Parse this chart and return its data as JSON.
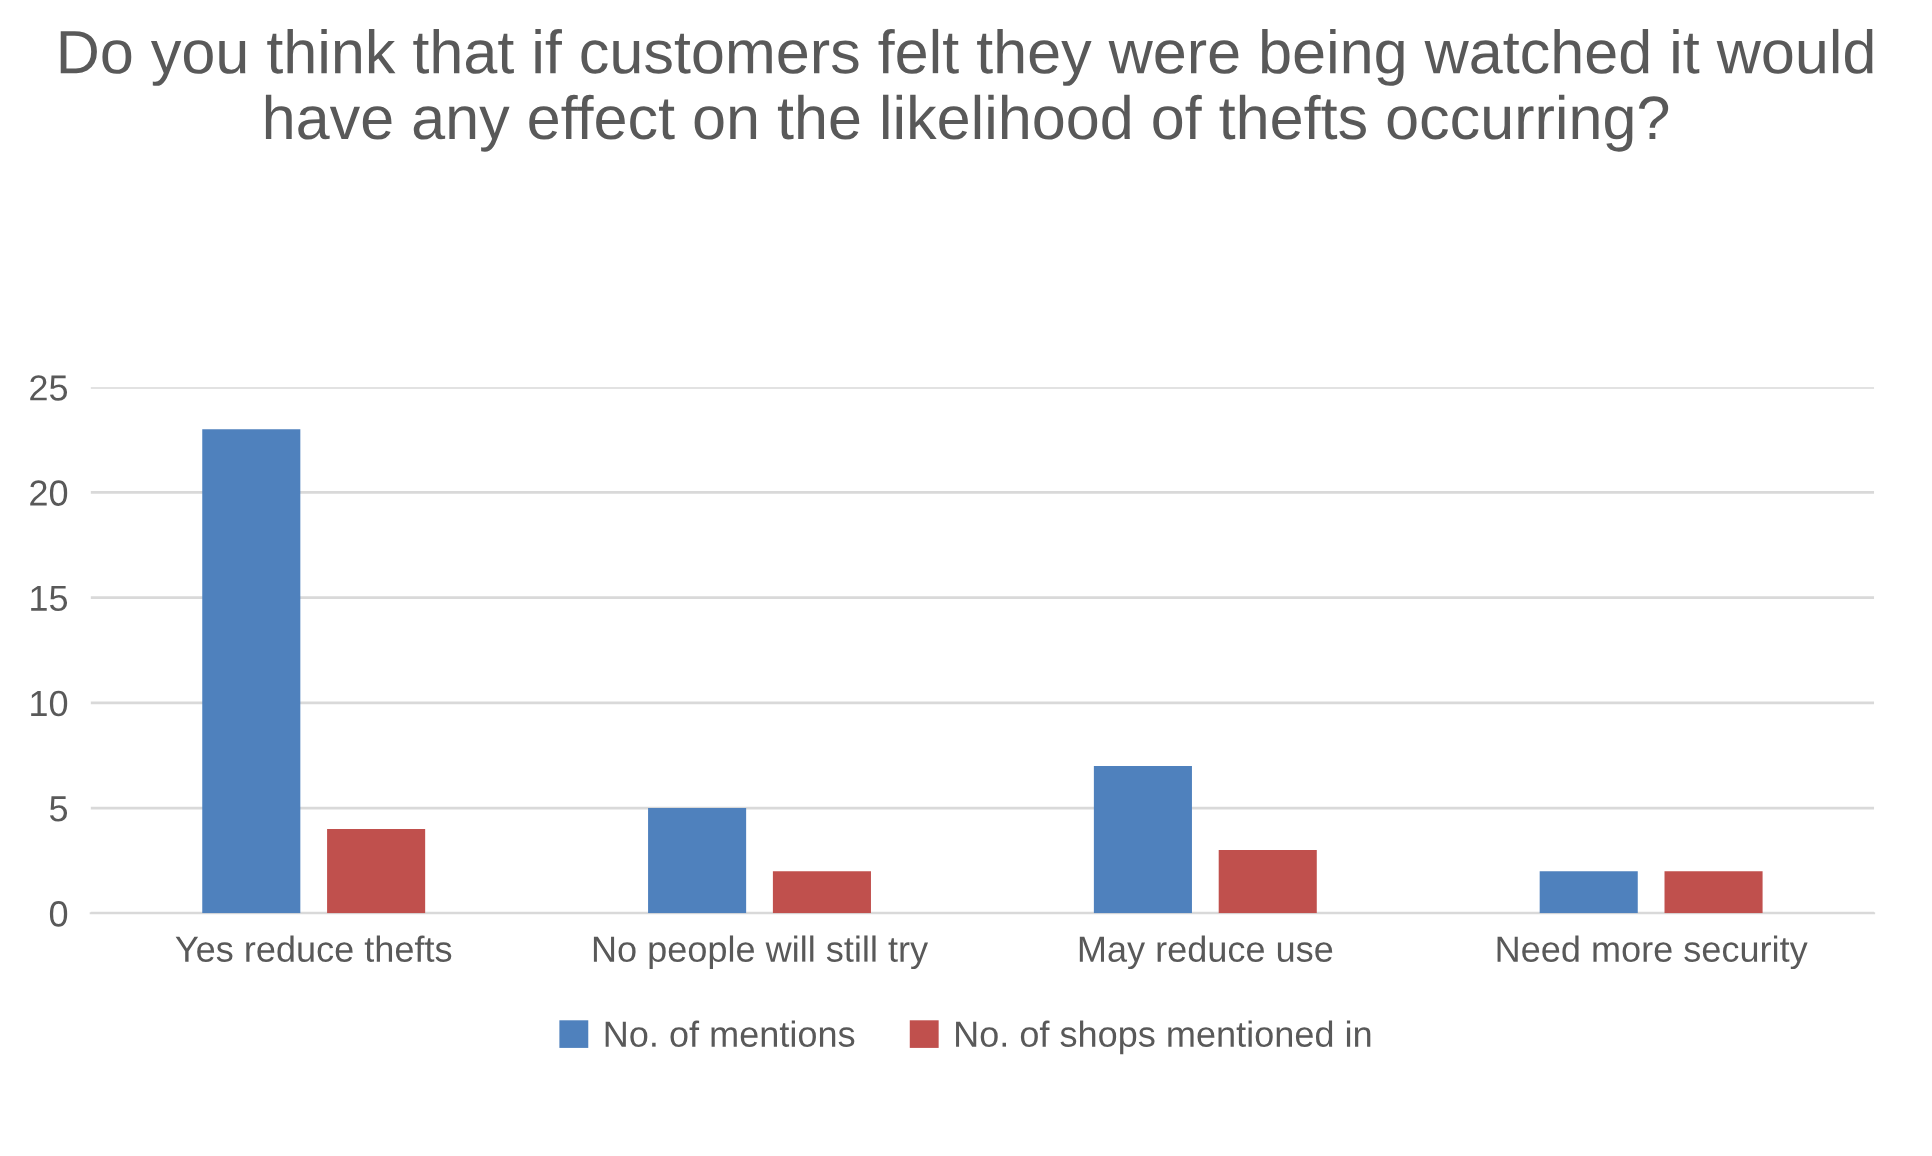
{
  "chart_data": {
    "type": "bar",
    "title": "Do you think that if customers felt they were being watched it would have any effect on the likelihood of thefts occurring?",
    "categories": [
      "Yes reduce thefts",
      "No people will still try",
      "May reduce use",
      "Need more security"
    ],
    "series": [
      {
        "name": "No. of mentions",
        "color": "#4f81bd",
        "values": [
          23,
          5,
          7,
          2
        ]
      },
      {
        "name": "No. of shops mentioned in",
        "color": "#c0504d",
        "values": [
          4,
          2,
          3,
          2
        ]
      }
    ],
    "ylim": [
      0,
      25
    ],
    "yticks": [
      0,
      5,
      10,
      15,
      20,
      25
    ],
    "grid": "y",
    "legend": "bottom"
  }
}
